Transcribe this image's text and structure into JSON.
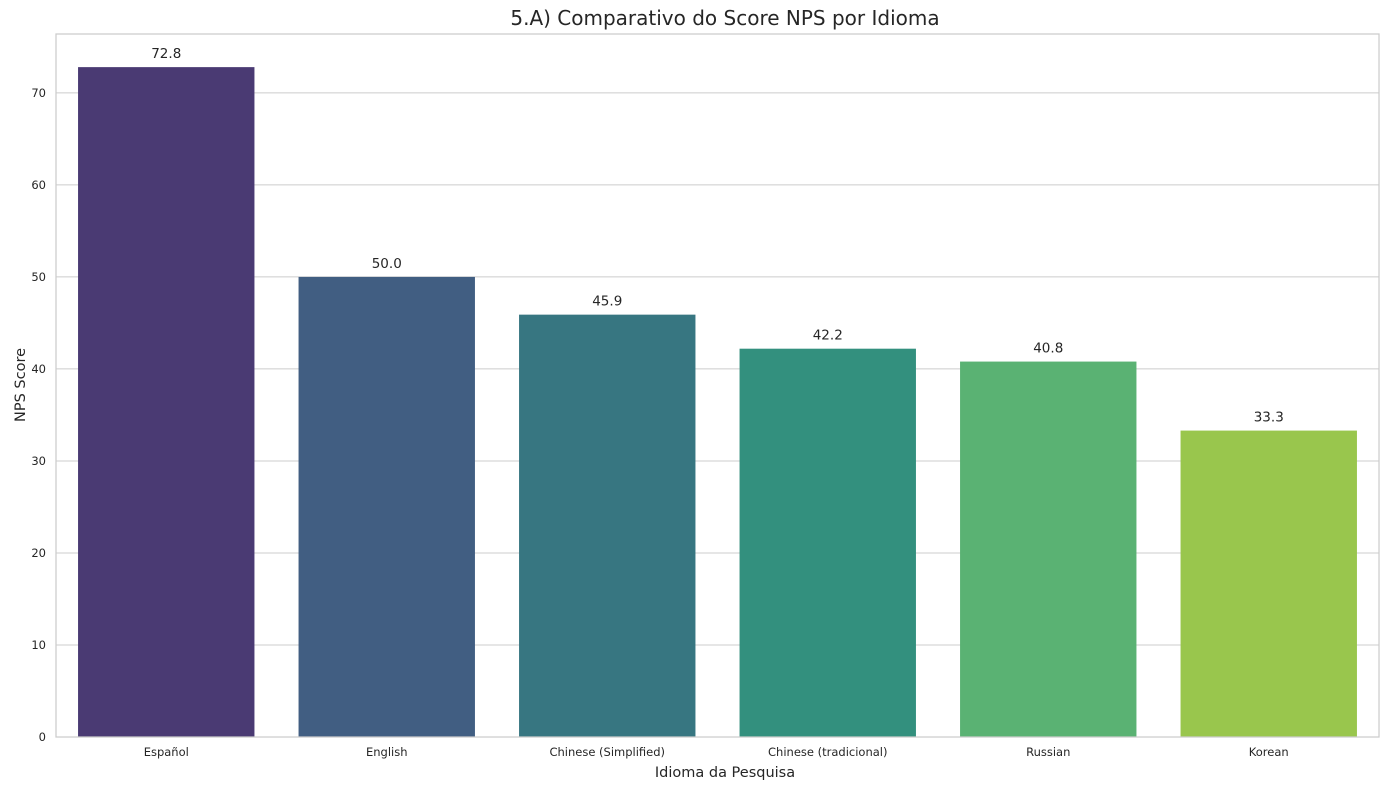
{
  "chart_data": {
    "type": "bar",
    "title": "5.A) Comparativo do Score NPS por Idioma",
    "xlabel": "Idioma da Pesquisa",
    "ylabel": "NPS Score",
    "categories": [
      "Español",
      "English",
      "Chinese (Simplified)",
      "Chinese (tradicional)",
      "Russian",
      "Korean"
    ],
    "values": [
      72.8,
      50.0,
      45.9,
      42.2,
      40.8,
      33.3
    ],
    "value_labels": [
      "72.8",
      "50.0",
      "45.9",
      "42.2",
      "40.8",
      "33.3"
    ],
    "colors": [
      "#4a3a73",
      "#415e82",
      "#377681",
      "#33907e",
      "#5ab273",
      "#99c64d"
    ],
    "ylim": [
      0,
      76.4
    ],
    "yticks": [
      0,
      10,
      20,
      30,
      40,
      50,
      60,
      70
    ],
    "ytick_labels": [
      "0",
      "10",
      "20",
      "30",
      "40",
      "50",
      "60",
      "70"
    ],
    "grid": true,
    "grid_axis": "y",
    "grid_color": "#cccccc",
    "spine_color": "#cccccc",
    "legend": "none"
  }
}
